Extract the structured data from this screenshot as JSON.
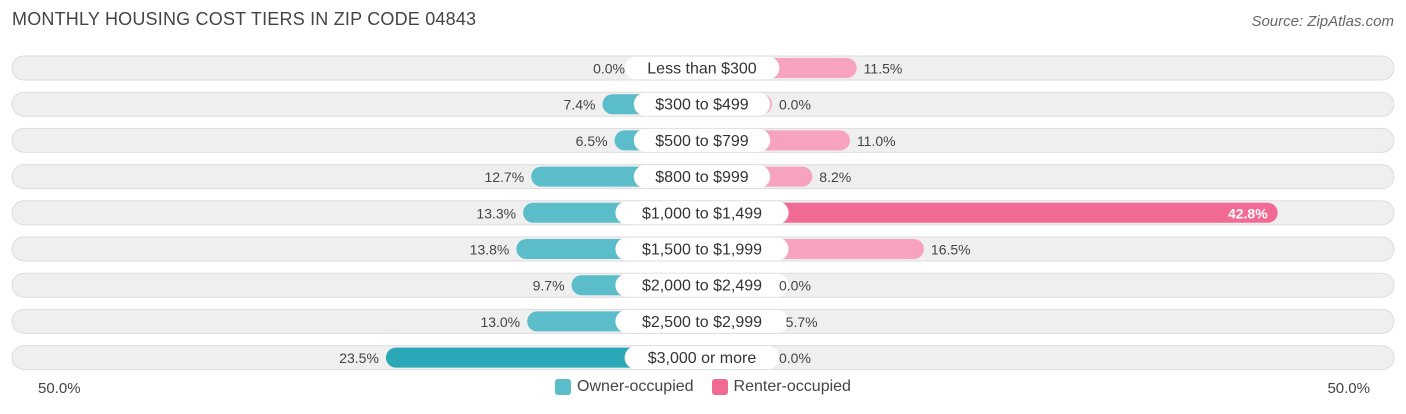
{
  "header": {
    "title": "MONTHLY HOUSING COST TIERS IN ZIP CODE 04843",
    "source": "Source: ZipAtlas.com"
  },
  "axis": {
    "left_label": "50.0%",
    "right_label": "50.0%"
  },
  "legend": {
    "owner_label": "Owner-occupied",
    "renter_label": "Renter-occupied"
  },
  "colors": {
    "owner": "#5bbcca",
    "owner_strong": "#2aa8b8",
    "renter": "#f7a3bf",
    "renter_strong": "#f06a94",
    "row_bg": "#efefef"
  },
  "chart_data": {
    "type": "bar",
    "orientation": "horizontal-diverging",
    "categories": [
      "Less than $300",
      "$300 to $499",
      "$500 to $799",
      "$800 to $999",
      "$1,000 to $1,499",
      "$1,500 to $1,999",
      "$2,000 to $2,499",
      "$2,500 to $2,999",
      "$3,000 or more"
    ],
    "series": [
      {
        "name": "Owner-occupied",
        "values": [
          0.0,
          7.4,
          6.5,
          12.7,
          13.3,
          13.8,
          9.7,
          13.0,
          23.5
        ],
        "labels": [
          "0.0%",
          "7.4%",
          "6.5%",
          "12.7%",
          "13.3%",
          "13.8%",
          "9.7%",
          "13.0%",
          "23.5%"
        ]
      },
      {
        "name": "Renter-occupied",
        "values": [
          11.5,
          0.0,
          11.0,
          8.2,
          42.8,
          16.5,
          0.0,
          5.7,
          0.0
        ],
        "labels": [
          "11.5%",
          "0.0%",
          "11.0%",
          "8.2%",
          "42.8%",
          "16.5%",
          "0.0%",
          "5.7%",
          "0.0%"
        ]
      }
    ],
    "xlim": [
      -50,
      50
    ],
    "legend_position": "bottom-center"
  }
}
